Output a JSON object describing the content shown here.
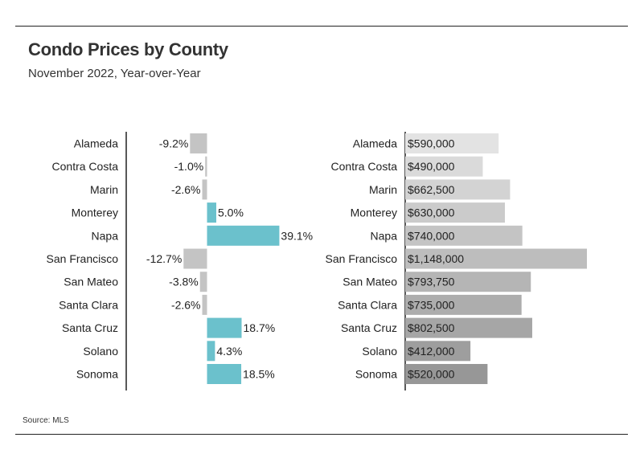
{
  "title": "Condo Prices by County",
  "subtitle": "November 2022, Year-over-Year",
  "source": "Source: MLS",
  "chart_data": [
    {
      "type": "bar",
      "orientation": "horizontal",
      "categories": [
        "Alameda",
        "Contra Costa",
        "Marin",
        "Monterey",
        "Napa",
        "San Francisco",
        "San Mateo",
        "Santa Clara",
        "Santa Cruz",
        "Solano",
        "Sonoma"
      ],
      "values": [
        -9.2,
        -1.0,
        -2.6,
        5.0,
        39.1,
        -12.7,
        -3.8,
        -2.6,
        18.7,
        4.3,
        18.5
      ],
      "value_labels": [
        "-9.2%",
        "-1.0%",
        "-2.6%",
        "5.0%",
        "39.1%",
        "-12.7%",
        "-3.8%",
        "-2.6%",
        "18.7%",
        "4.3%",
        "18.5%"
      ],
      "colors": {
        "positive": "#6bc1cc",
        "negative": "#c4c4c4"
      }
    },
    {
      "type": "bar",
      "orientation": "horizontal",
      "categories": [
        "Alameda",
        "Contra Costa",
        "Marin",
        "Monterey",
        "Napa",
        "San Francisco",
        "San Mateo",
        "Santa Clara",
        "Santa Cruz",
        "Solano",
        "Sonoma"
      ],
      "values": [
        590000,
        490000,
        662500,
        630000,
        740000,
        1148000,
        793750,
        735000,
        802500,
        412000,
        520000
      ],
      "value_labels": [
        "$590,000",
        "$490,000",
        "$662,500",
        "$630,000",
        "$740,000",
        "$1,148,000",
        "$793,750",
        "$735,000",
        "$802,500",
        "$412,000",
        "$520,000"
      ],
      "colors": [
        "#e3e3e3",
        "#dadada",
        "#d3d3d3",
        "#cbcbcb",
        "#c4c4c4",
        "#bdbdbd",
        "#b5b5b5",
        "#adadad",
        "#a6a6a6",
        "#9e9e9e",
        "#979797"
      ]
    }
  ]
}
